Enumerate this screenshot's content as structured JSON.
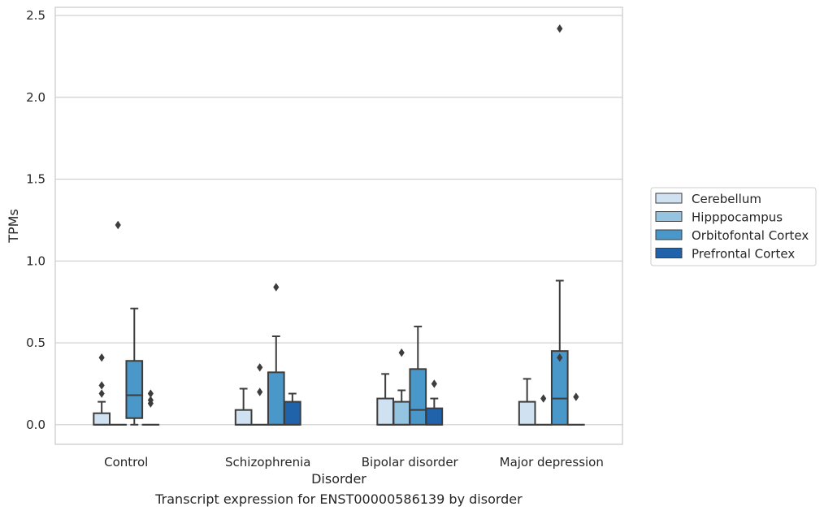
{
  "caption": "Transcript expression for ENST00000586139 by disorder",
  "chart_data": {
    "type": "box",
    "title": "",
    "xlabel": "Disorder",
    "ylabel": "TPMs",
    "ylim": [
      -0.12,
      2.55
    ],
    "yticks": [
      0.0,
      0.5,
      1.0,
      1.5,
      2.0,
      2.5
    ],
    "ytick_labels": [
      "0.0",
      "0.5",
      "1.0",
      "1.5",
      "2.0",
      "2.5"
    ],
    "grid": "horizontal",
    "legend_position": "right",
    "categories": [
      "Control",
      "Schizophrenia",
      "Bipolar disorder",
      "Major depression"
    ],
    "series": [
      {
        "name": "Cerebellum",
        "color": "#d0e1f2",
        "boxes": [
          {
            "whisker_low": 0.0,
            "q1": 0.0,
            "median": 0.0,
            "q3": 0.07,
            "whisker_high": 0.14,
            "outliers": [
              0.41,
              0.24,
              0.19
            ]
          },
          {
            "whisker_low": 0.0,
            "q1": 0.0,
            "median": 0.0,
            "q3": 0.09,
            "whisker_high": 0.22,
            "outliers": []
          },
          {
            "whisker_low": 0.0,
            "q1": 0.0,
            "median": 0.0,
            "q3": 0.16,
            "whisker_high": 0.31,
            "outliers": []
          },
          {
            "whisker_low": 0.0,
            "q1": 0.0,
            "median": 0.0,
            "q3": 0.14,
            "whisker_high": 0.28,
            "outliers": []
          }
        ]
      },
      {
        "name": "Hipppocampus",
        "color": "#94c4df",
        "boxes": [
          {
            "whisker_low": 0.0,
            "q1": 0.0,
            "median": 0.0,
            "q3": 0.0,
            "whisker_high": 0.0,
            "outliers": [
              1.22
            ]
          },
          {
            "whisker_low": 0.0,
            "q1": 0.0,
            "median": 0.0,
            "q3": 0.0,
            "whisker_high": 0.0,
            "outliers": [
              0.35,
              0.2
            ]
          },
          {
            "whisker_low": 0.0,
            "q1": 0.0,
            "median": 0.0,
            "q3": 0.14,
            "whisker_high": 0.21,
            "outliers": [
              0.44
            ]
          },
          {
            "whisker_low": 0.0,
            "q1": 0.0,
            "median": 0.0,
            "q3": 0.0,
            "whisker_high": 0.0,
            "outliers": [
              0.16
            ]
          }
        ]
      },
      {
        "name": "Orbitofontal Cortex",
        "color": "#4a98c9",
        "boxes": [
          {
            "whisker_low": 0.0,
            "q1": 0.04,
            "median": 0.18,
            "q3": 0.39,
            "whisker_high": 0.71,
            "outliers": []
          },
          {
            "whisker_low": 0.0,
            "q1": 0.0,
            "median": 0.0,
            "q3": 0.32,
            "whisker_high": 0.54,
            "outliers": [
              0.84
            ]
          },
          {
            "whisker_low": 0.0,
            "q1": 0.0,
            "median": 0.09,
            "q3": 0.34,
            "whisker_high": 0.6,
            "outliers": []
          },
          {
            "whisker_low": 0.0,
            "q1": 0.0,
            "median": 0.16,
            "q3": 0.45,
            "whisker_high": 0.88,
            "outliers": [
              2.42,
              0.41
            ]
          }
        ]
      },
      {
        "name": "Prefrontal Cortex",
        "color": "#2163aa",
        "boxes": [
          {
            "whisker_low": 0.0,
            "q1": 0.0,
            "median": 0.0,
            "q3": 0.0,
            "whisker_high": 0.0,
            "outliers": [
              0.19,
              0.15,
              0.13
            ]
          },
          {
            "whisker_low": 0.0,
            "q1": 0.0,
            "median": 0.0,
            "q3": 0.14,
            "whisker_high": 0.19,
            "outliers": []
          },
          {
            "whisker_low": 0.0,
            "q1": 0.0,
            "median": 0.0,
            "q3": 0.1,
            "whisker_high": 0.16,
            "outliers": [
              0.25
            ]
          },
          {
            "whisker_low": 0.0,
            "q1": 0.0,
            "median": 0.0,
            "q3": 0.0,
            "whisker_high": 0.0,
            "outliers": [
              0.17
            ]
          }
        ]
      }
    ]
  }
}
